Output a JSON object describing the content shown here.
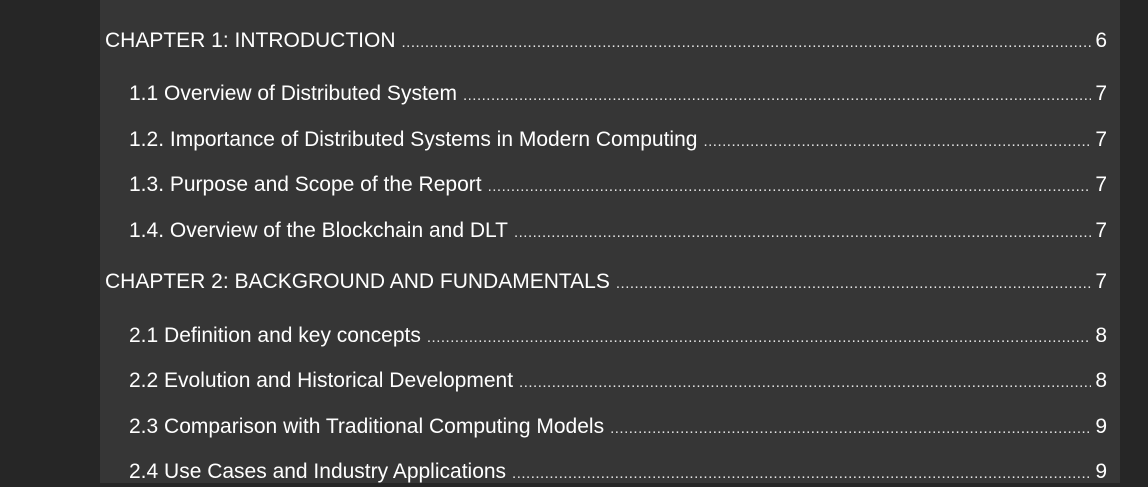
{
  "toc": {
    "entries": [
      {
        "level": "chapter",
        "label": "CHAPTER 1: INTRODUCTION",
        "page": "6"
      },
      {
        "level": "section",
        "label": "1.1 Overview of Distributed System",
        "page": "7"
      },
      {
        "level": "section",
        "label": "1.2. Importance of Distributed Systems in Modern Computing",
        "page": "7"
      },
      {
        "level": "section",
        "label": "1.3. Purpose and Scope of the Report",
        "page": "7"
      },
      {
        "level": "section",
        "label": "1.4. Overview of the Blockchain and DLT",
        "page": "7"
      },
      {
        "level": "chapter",
        "label": "CHAPTER 2: BACKGROUND AND FUNDAMENTALS",
        "page": "7"
      },
      {
        "level": "section",
        "label": "2.1 Definition and key concepts",
        "page": "8"
      },
      {
        "level": "section",
        "label": "2.2 Evolution and Historical Development",
        "page": "8"
      },
      {
        "level": "section",
        "label": "2.3 Comparison with Traditional Computing Models",
        "page": "9"
      },
      {
        "level": "section",
        "label": "2.4 Use Cases and Industry Applications",
        "page": "9"
      }
    ]
  }
}
